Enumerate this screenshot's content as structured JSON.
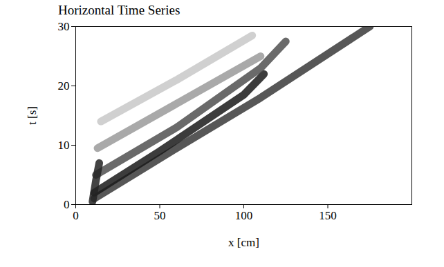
{
  "chart_data": {
    "type": "line",
    "title": "Horizontal Time Series",
    "x_label": "x [cm]",
    "y_label": "t [s]",
    "xlim": [
      0,
      200
    ],
    "xticks": [
      0,
      50,
      100,
      150
    ],
    "ylim": [
      0,
      30
    ],
    "yticks": [
      0,
      10,
      20,
      30
    ],
    "grid": false,
    "series": [
      {
        "x": [
          11,
          60,
          110,
          175
        ],
        "values": [
          1,
          9.5,
          18,
          30
        ],
        "color": "#3a3a3a"
      },
      {
        "x": [
          11,
          50,
          100,
          112
        ],
        "values": [
          2,
          9,
          18.5,
          22
        ],
        "color": "#1a1a1a"
      },
      {
        "x": [
          12,
          60,
          110,
          125
        ],
        "values": [
          5,
          13,
          23,
          27.5
        ],
        "color": "#505050"
      },
      {
        "x": [
          13,
          60,
          110
        ],
        "values": [
          9.5,
          17,
          25
        ],
        "color": "#9a9a9a"
      },
      {
        "x": [
          15,
          60,
          105
        ],
        "values": [
          14,
          21,
          28.5
        ],
        "color": "#c8c8c8"
      },
      {
        "x": [
          10,
          12,
          14
        ],
        "values": [
          0.5,
          4,
          7
        ],
        "color": "#222222"
      }
    ]
  }
}
